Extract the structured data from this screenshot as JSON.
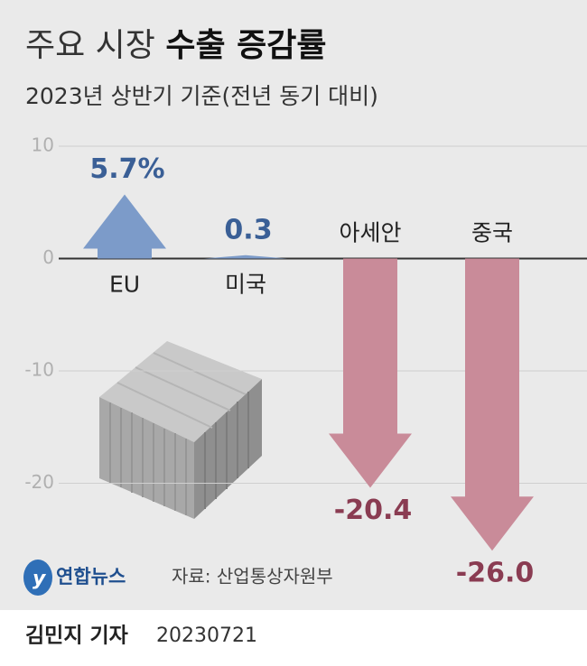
{
  "chart_data": {
    "type": "arrow",
    "title": {
      "regular": "주요 시장",
      "bold": "수출 증감률"
    },
    "subtitle": "2023년 상반기 기준(전년 동기 대비)",
    "categories": [
      "EU",
      "미국",
      "아세안",
      "중국"
    ],
    "values": [
      5.7,
      0.3,
      -20.4,
      -26.0
    ],
    "value_labels": [
      "5.7%",
      "0.3",
      "-20.4",
      "-26.0"
    ],
    "positive_color": "#7c9bc9",
    "negative_color": "#c98b99",
    "ylim": [
      -30,
      10
    ],
    "yticks": [
      10,
      0,
      -10,
      -20
    ],
    "grid": true
  },
  "logo": "연합뉴스",
  "source": "자료: 산업통상자원부",
  "byline": {
    "author": "김민지 기자",
    "date": "20230721"
  }
}
